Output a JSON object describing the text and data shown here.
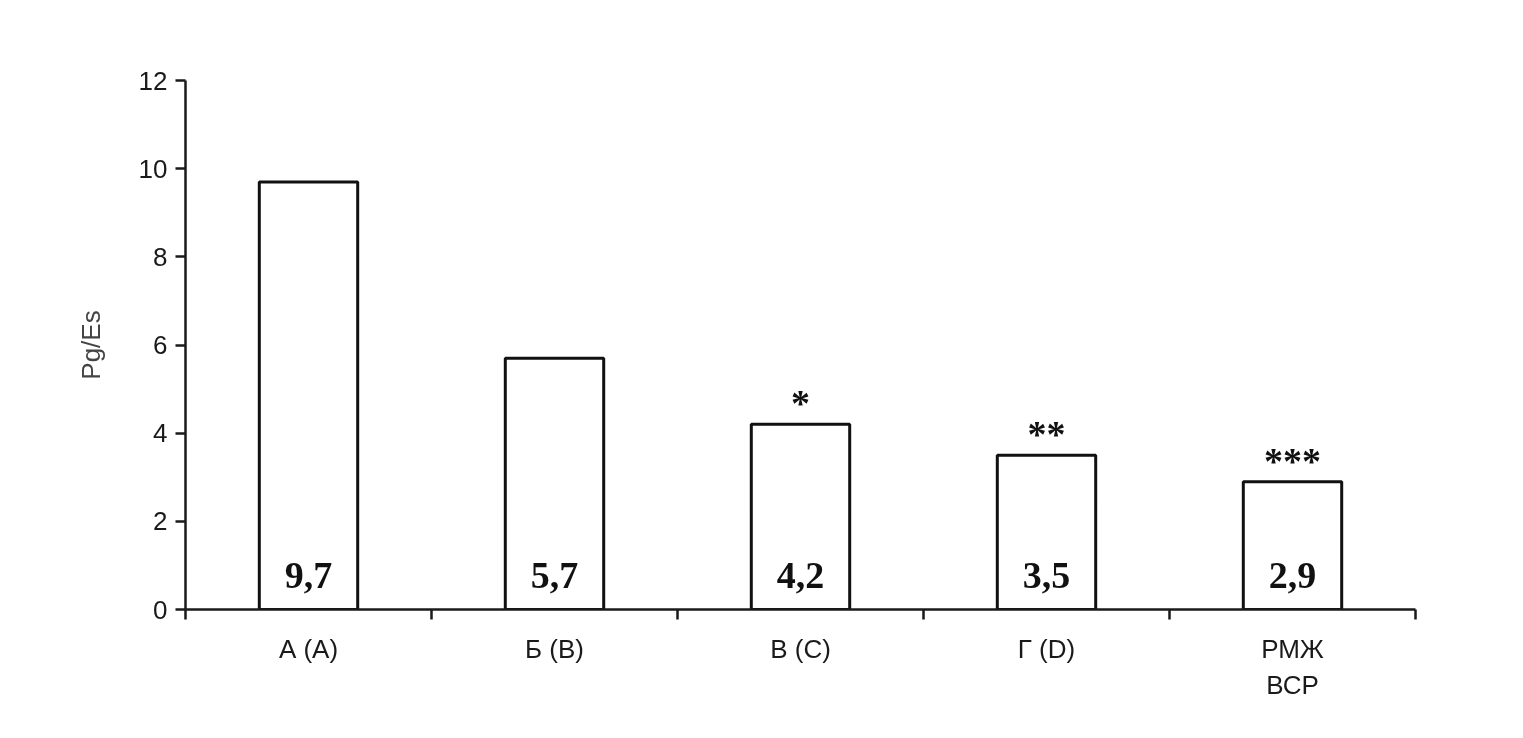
{
  "chart_data": {
    "type": "bar",
    "ylabel": "Pg/Es",
    "categories": [
      "А (A)",
      "Б (B)",
      "В (C)",
      "Г (D)",
      "РМЖ\nВСР"
    ],
    "values": [
      9.7,
      5.7,
      4.2,
      3.5,
      2.9
    ],
    "color": "#ffffff",
    "value_labels": [
      "9,7",
      "5,7",
      "4,2",
      "3,5",
      "2,9"
    ],
    "ylim": [
      0,
      12
    ],
    "yticks": [
      0,
      2,
      4,
      6,
      8,
      10,
      12
    ],
    "grid": false,
    "annotations": [
      {
        "text": "*",
        "x": "В (C)",
        "y": 4.2
      },
      {
        "text": "**",
        "x": "Г (D)",
        "y": 3.5
      },
      {
        "text": "***",
        "x": "РМЖ\nВСР",
        "y": 2.9
      }
    ]
  }
}
